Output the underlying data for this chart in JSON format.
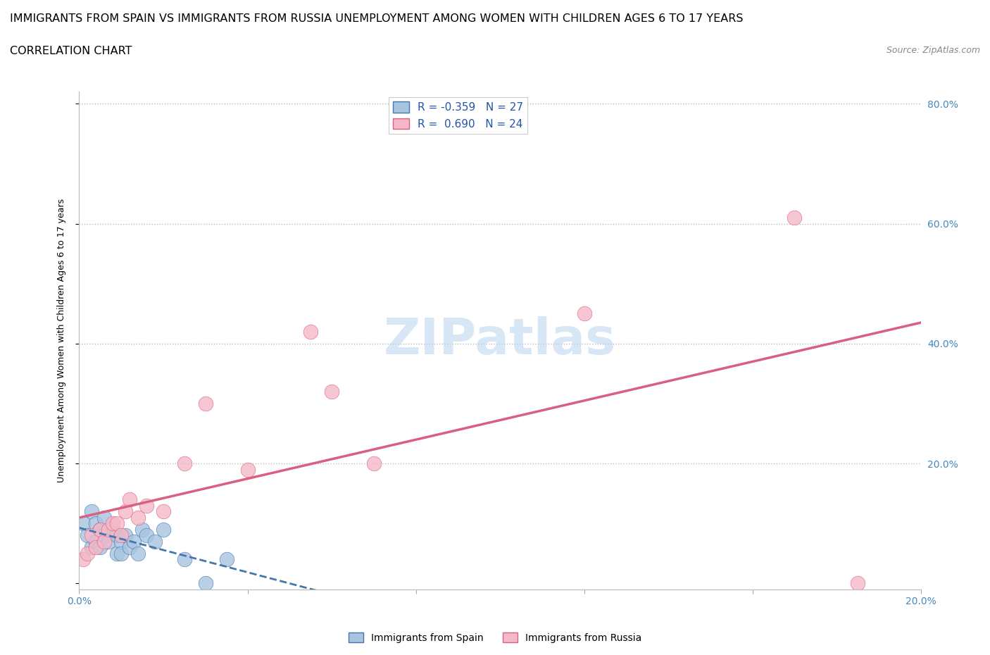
{
  "title_line1": "IMMIGRANTS FROM SPAIN VS IMMIGRANTS FROM RUSSIA UNEMPLOYMENT AMONG WOMEN WITH CHILDREN AGES 6 TO 17 YEARS",
  "title_line2": "CORRELATION CHART",
  "source_text": "Source: ZipAtlas.com",
  "watermark": "ZIPatlas",
  "ylabel": "Unemployment Among Women with Children Ages 6 to 17 years",
  "xlim": [
    0.0,
    0.2
  ],
  "ylim": [
    -0.01,
    0.82
  ],
  "spain_color": "#a8c4e0",
  "russia_color": "#f4b8c8",
  "spain_line_color": "#4477aa",
  "russia_line_color": "#d96080",
  "spain_R": -0.359,
  "spain_N": 27,
  "russia_R": 0.69,
  "russia_N": 24,
  "grid_color": "#cccccc",
  "background_color": "#ffffff",
  "spain_x": [
    0.001,
    0.002,
    0.003,
    0.003,
    0.004,
    0.004,
    0.005,
    0.005,
    0.006,
    0.006,
    0.007,
    0.008,
    0.009,
    0.009,
    0.01,
    0.01,
    0.011,
    0.012,
    0.013,
    0.014,
    0.015,
    0.016,
    0.018,
    0.02,
    0.025,
    0.03,
    0.035
  ],
  "spain_y": [
    0.1,
    0.08,
    0.12,
    0.06,
    0.1,
    0.07,
    0.09,
    0.06,
    0.11,
    0.08,
    0.07,
    0.09,
    0.05,
    0.08,
    0.07,
    0.05,
    0.08,
    0.06,
    0.07,
    0.05,
    0.09,
    0.08,
    0.07,
    0.09,
    0.04,
    0.0,
    0.04
  ],
  "russia_x": [
    0.001,
    0.002,
    0.003,
    0.004,
    0.005,
    0.006,
    0.007,
    0.008,
    0.009,
    0.01,
    0.011,
    0.012,
    0.014,
    0.016,
    0.02,
    0.025,
    0.03,
    0.04,
    0.055,
    0.06,
    0.07,
    0.12,
    0.17,
    0.185
  ],
  "russia_y": [
    0.04,
    0.05,
    0.08,
    0.06,
    0.09,
    0.07,
    0.09,
    0.1,
    0.1,
    0.08,
    0.12,
    0.14,
    0.11,
    0.13,
    0.12,
    0.2,
    0.3,
    0.19,
    0.42,
    0.32,
    0.2,
    0.45,
    0.61,
    0.0
  ],
  "title_fontsize": 11.5,
  "subtitle_fontsize": 11.5,
  "source_fontsize": 9,
  "axis_label_fontsize": 9,
  "tick_fontsize": 10,
  "legend_fontsize": 11,
  "watermark_fontsize": 52,
  "watermark_color": "#b8d4ee",
  "watermark_alpha": 0.55
}
